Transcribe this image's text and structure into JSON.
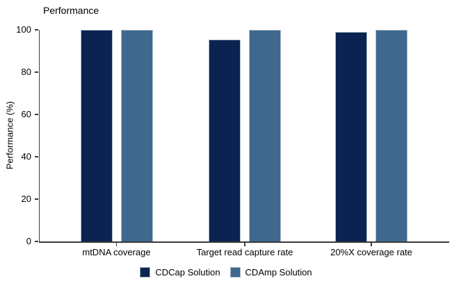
{
  "chart_data": {
    "type": "bar",
    "title": "Performance",
    "xlabel": "",
    "ylabel": "Performance (%)",
    "categories": [
      "mtDNA coverage",
      "Target read capture rate",
      "20%X coverage rate"
    ],
    "series": [
      {
        "name": "CDCap Solution",
        "color": "#0a2351",
        "values": [
          100,
          95.5,
          99
        ]
      },
      {
        "name": "CDAmp Solution",
        "color": "#40688e",
        "values": [
          100,
          100,
          100
        ]
      }
    ],
    "ylim": [
      0,
      100
    ],
    "yticks": [
      0,
      20,
      40,
      60,
      80,
      100
    ],
    "grid": false,
    "legend_position": "bottom",
    "bar_border_color": "#aebdc9",
    "axis_color": "#3a3a3a"
  }
}
